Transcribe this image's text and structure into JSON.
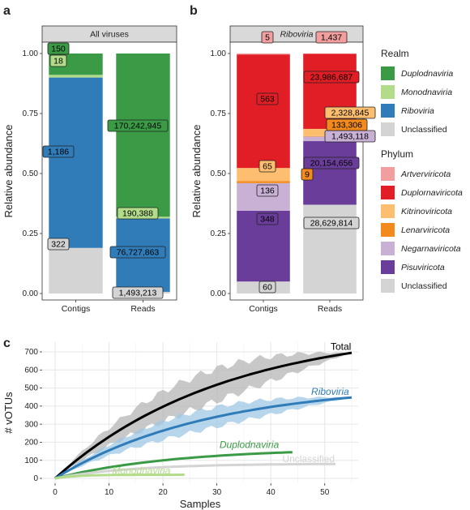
{
  "colors": {
    "Duplodnaviricota_realm": "#3a9a45",
    "Monodnaviria": "#b2dc8a",
    "Riboviria": "#2f7cb8",
    "Unclassified": "#d4d4d4",
    "Artverviricota": "#f29e9e",
    "Duplornaviricota": "#e11d26",
    "Kitrinoviricota": "#fdbe70",
    "Lenarviricota": "#f28a1c",
    "Negarnaviricota": "#c9b0d5",
    "Pisuviricota": "#6a3d9a",
    "Total": "#000000",
    "ribo_band": "#9fc8e6",
    "total_band": "#b5b5b5",
    "panel_header_bg": "#d9d9d9"
  },
  "chart_data": [
    {
      "type": "bar",
      "stacked": true,
      "panel_letter": "a",
      "title": "All viruses",
      "ylabel": "Relative abundance",
      "xlabel": "",
      "ylim": [
        0,
        1
      ],
      "yticks": [
        "0.00",
        "0.25",
        "0.50",
        "0.75",
        "1.00"
      ],
      "categories": [
        "Contigs",
        "Reads"
      ],
      "series": [
        {
          "name": "Unclassified",
          "color_key": "Unclassified",
          "values": [
            0.19,
            0.007
          ],
          "labels": [
            "322",
            "1,493,213"
          ]
        },
        {
          "name": "Riboviria",
          "color_key": "Riboviria",
          "values": [
            0.71,
            0.306
          ],
          "labels": [
            "1,186",
            "76,727,863"
          ]
        },
        {
          "name": "Monodnaviria",
          "color_key": "Monodnaviria",
          "values": [
            0.011,
            0.007
          ],
          "labels": [
            "18",
            "190,388"
          ]
        },
        {
          "name": "Duplodnaviria",
          "color_key": "Duplodnaviricota_realm",
          "values": [
            0.089,
            0.68
          ],
          "labels": [
            "150",
            "170,242,945"
          ]
        }
      ]
    },
    {
      "type": "bar",
      "stacked": true,
      "panel_letter": "b",
      "title": "Riboviria",
      "ylabel": "Relative abundance",
      "xlabel": "",
      "ylim": [
        0,
        1
      ],
      "yticks": [
        "0.00",
        "0.25",
        "0.50",
        "0.75",
        "1.00"
      ],
      "categories": [
        "Contigs",
        "Reads"
      ],
      "series": [
        {
          "name": "Unclassified",
          "color_key": "Unclassified",
          "values": [
            0.05,
            0.37
          ],
          "labels": [
            "60",
            "28,629,814"
          ]
        },
        {
          "name": "Pisuviricota",
          "color_key": "Pisuviricota",
          "values": [
            0.295,
            0.265
          ],
          "labels": [
            "348",
            "20,154,656"
          ]
        },
        {
          "name": "Negarnaviricota",
          "color_key": "Negarnaviricota",
          "values": [
            0.115,
            0.019
          ],
          "labels": [
            "136",
            "1,493,118"
          ]
        },
        {
          "name": "Lenarviricota",
          "color_key": "Lenarviricota",
          "values": [
            0.008,
            0.002
          ],
          "labels": [
            "9",
            "133,306"
          ]
        },
        {
          "name": "Kitrinoviricota",
          "color_key": "Kitrinoviricota",
          "values": [
            0.055,
            0.03
          ],
          "labels": [
            "65",
            "2,328,845"
          ]
        },
        {
          "name": "Duplornaviricota",
          "color_key": "Duplornaviricota",
          "values": [
            0.473,
            0.313
          ],
          "labels": [
            "563",
            "23,986,687"
          ]
        },
        {
          "name": "Artverviricota",
          "color_key": "Artverviricota",
          "values": [
            0.004,
            0.001
          ],
          "labels": [
            "5",
            "1,437"
          ]
        }
      ]
    },
    {
      "type": "line",
      "panel_letter": "c",
      "xlabel": "Samples",
      "ylabel": "# vOTUs",
      "xlim": [
        0,
        55
      ],
      "ylim": [
        0,
        700
      ],
      "xticks": [
        0,
        10,
        20,
        30,
        40,
        50
      ],
      "yticks": [
        0,
        100,
        200,
        300,
        400,
        500,
        600,
        700
      ],
      "series": [
        {
          "name": "Total",
          "color_key": "Total",
          "band_key": "total_band",
          "n": 55,
          "final": 695,
          "k": 0.032,
          "sd": 90
        },
        {
          "name": "Riboviria",
          "color_key": "Riboviria",
          "band_key": "ribo_band",
          "n": 55,
          "final": 448,
          "k": 0.035,
          "sd": 55
        },
        {
          "name": "Duplodnaviria",
          "color_key": "Duplodnaviricota_realm",
          "n": 44,
          "final": 145,
          "k": 0.045,
          "sd": 0
        },
        {
          "name": "Unclassified",
          "color_key": "Unclassified",
          "n": 52,
          "final": 80,
          "k": 0.07,
          "sd": 0
        },
        {
          "name": "Monodnaviria",
          "color_key": "Monodnaviria",
          "n": 24,
          "final": 20,
          "k": 0.25,
          "sd": 0
        }
      ]
    }
  ],
  "legends": {
    "realm": {
      "title": "Realm",
      "items": [
        {
          "label": "Duplodnaviria",
          "color_key": "Duplodnaviricota_realm"
        },
        {
          "label": "Monodnaviria",
          "color_key": "Monodnaviria"
        },
        {
          "label": "Riboviria",
          "color_key": "Riboviria"
        },
        {
          "label": "Unclassified",
          "color_key": "Unclassified"
        }
      ]
    },
    "phylum": {
      "title": "Phylum",
      "items": [
        {
          "label": "Artverviricota",
          "color_key": "Artverviricota"
        },
        {
          "label": "Duplornaviricota",
          "color_key": "Duplornaviricota"
        },
        {
          "label": "Kitrinoviricota",
          "color_key": "Kitrinoviricota"
        },
        {
          "label": "Lenarviricota",
          "color_key": "Lenarviricota"
        },
        {
          "label": "Negarnaviricota",
          "color_key": "Negarnaviricota"
        },
        {
          "label": "Pisuviricota",
          "color_key": "Pisuviricota"
        },
        {
          "label": "Unclassified",
          "color_key": "Unclassified"
        }
      ]
    }
  }
}
